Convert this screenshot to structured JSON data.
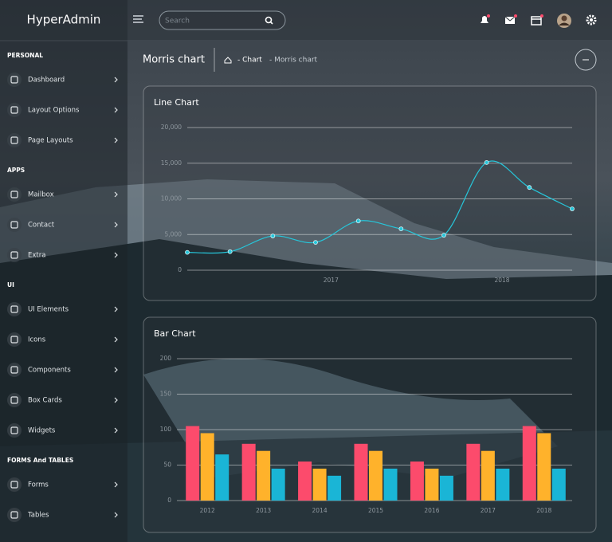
{
  "brand": "HyperAdmin",
  "search_placeholder": "Search",
  "sidebar": [
    {
      "heading": "PERSONAL",
      "items": [
        "Dashboard",
        "Layout Options",
        "Page Layouts"
      ]
    },
    {
      "heading": "APPS",
      "items": [
        "Mailbox",
        "Contact",
        "Extra"
      ]
    },
    {
      "heading": "UI",
      "items": [
        "UI Elements",
        "Icons",
        "Components",
        "Box Cards",
        "Widgets"
      ]
    },
    {
      "heading": "FORMS And TABLES",
      "items": [
        "Forms",
        "Tables"
      ]
    }
  ],
  "page_title": "Morris chart",
  "breadcrumb": [
    "- Chart",
    "- Morris chart"
  ],
  "chart_data": [
    {
      "type": "line",
      "title": "Line Chart",
      "x": [
        2016.16,
        2016.41,
        2016.66,
        2016.91,
        2017.16,
        2017.41,
        2017.66,
        2017.91,
        2018.16,
        2018.41
      ],
      "series": [
        {
          "color": "#26c6da",
          "values": [
            2500,
            2600,
            4800,
            3900,
            6900,
            5800,
            4900,
            15100,
            11600,
            8600
          ]
        }
      ],
      "xlim": [
        2016.16,
        2018.41
      ],
      "xticks": [
        2017,
        2018
      ],
      "ylim": [
        0,
        20000
      ],
      "yticks": [
        0,
        {
          "value": 5000,
          "label": "5,000"
        },
        {
          "value": 10000,
          "label": "10,000"
        },
        {
          "value": 15000,
          "label": "15,000"
        },
        {
          "value": 20000,
          "label": "20,000"
        }
      ],
      "grid": true,
      "smooth": true
    },
    {
      "type": "bar",
      "title": "Bar Chart",
      "categories": [
        "2012",
        "2013",
        "2014",
        "2015",
        "2016",
        "2017",
        "2018"
      ],
      "series": [
        {
          "color": "#fc4b6c",
          "values": [
            105,
            80,
            55,
            80,
            55,
            80,
            105
          ]
        },
        {
          "color": "#ffb22b",
          "values": [
            95,
            70,
            45,
            70,
            45,
            70,
            95
          ]
        },
        {
          "color": "#1ab5d6",
          "values": [
            65,
            45,
            35,
            45,
            35,
            45,
            45
          ]
        }
      ],
      "ylim": [
        0,
        200
      ],
      "yticks": [
        0,
        50,
        100,
        150,
        200
      ],
      "grid": true
    }
  ]
}
